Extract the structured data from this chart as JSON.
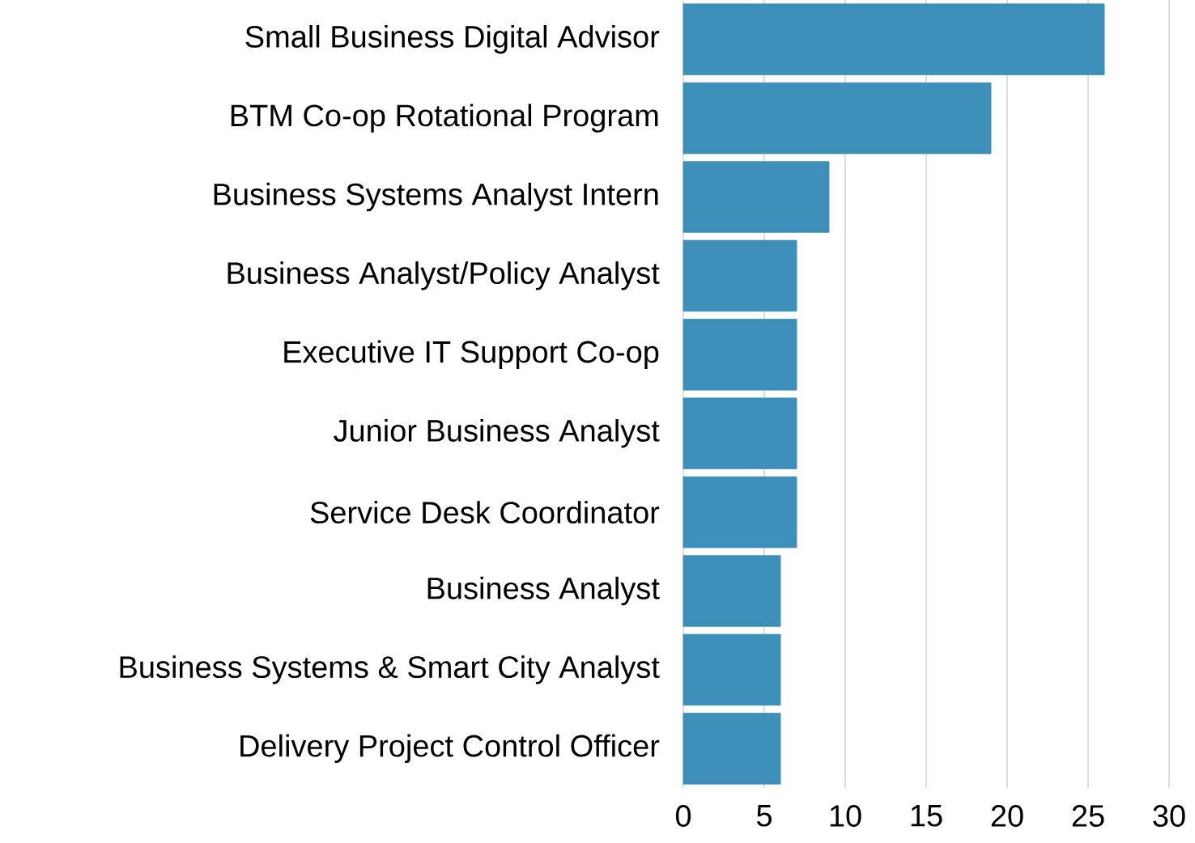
{
  "chart_data": {
    "type": "bar",
    "orientation": "horizontal",
    "categories": [
      "Small Business Digital Advisor",
      "BTM Co-op Rotational Program",
      "Business Systems Analyst Intern",
      "Business Analyst/Policy Analyst",
      "Executive IT Support Co-op",
      "Junior Business Analyst",
      "Service Desk Coordinator",
      "Business Analyst",
      "Business Systems & Smart City Analyst",
      "Delivery Project Control Officer"
    ],
    "values": [
      26,
      19,
      9,
      7,
      7,
      7,
      7,
      6,
      6,
      6
    ],
    "color": "#3d8eb9",
    "xlim": [
      0,
      30
    ],
    "xticks": [
      0,
      5,
      10,
      15,
      20,
      25,
      30
    ],
    "grid": "x"
  }
}
